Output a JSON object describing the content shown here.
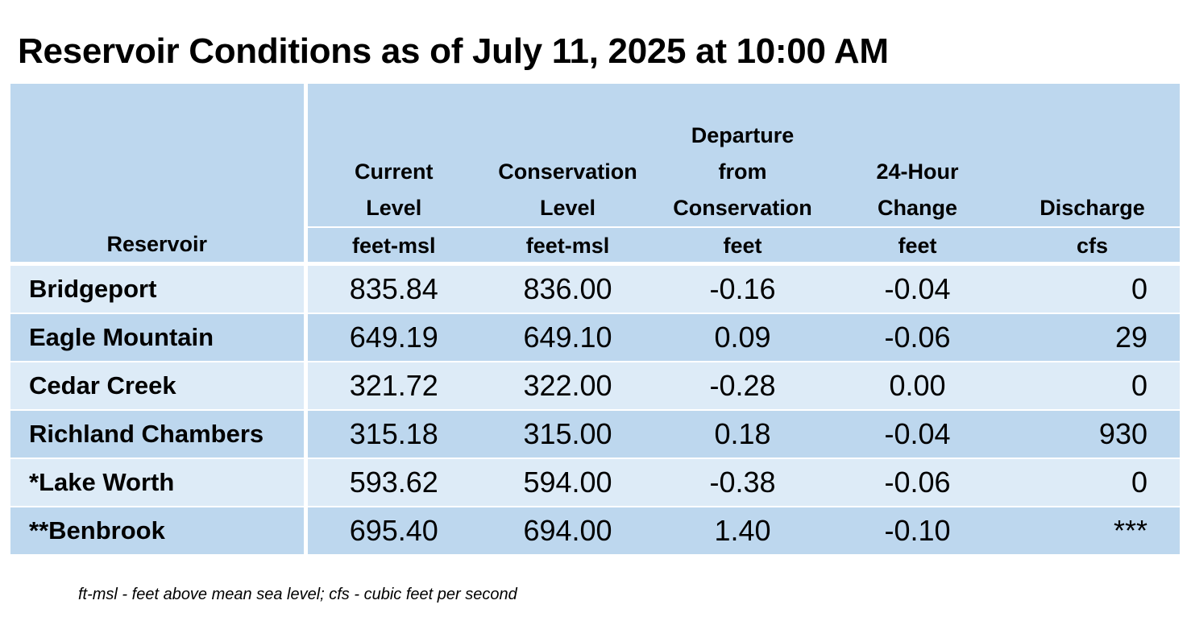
{
  "title": "Reservoir Conditions as of July 11, 2025 at 10:00 AM",
  "table": {
    "headers": {
      "reservoir": "Reservoir",
      "current_level": [
        "Current",
        "Level"
      ],
      "conservation_level": [
        "Conservation",
        "Level"
      ],
      "departure": [
        "Departure",
        "from",
        "Conservation"
      ],
      "change_24h": [
        "24-Hour",
        "Change"
      ],
      "discharge": [
        "Discharge"
      ]
    },
    "units": {
      "current_level": "feet-msl",
      "conservation_level": "feet-msl",
      "departure": "feet",
      "change_24h": "feet",
      "discharge": "cfs"
    },
    "rows": [
      {
        "name": "Bridgeport",
        "current": "835.84",
        "conservation": "836.00",
        "departure": "-0.16",
        "change": "-0.04",
        "discharge": "0"
      },
      {
        "name": "Eagle Mountain",
        "current": "649.19",
        "conservation": "649.10",
        "departure": "0.09",
        "change": "-0.06",
        "discharge": "29"
      },
      {
        "name": "Cedar Creek",
        "current": "321.72",
        "conservation": "322.00",
        "departure": "-0.28",
        "change": "0.00",
        "discharge": "0"
      },
      {
        "name": "Richland Chambers",
        "current": "315.18",
        "conservation": "315.00",
        "departure": "0.18",
        "change": "-0.04",
        "discharge": "930"
      },
      {
        "name": "*Lake Worth",
        "current": "593.62",
        "conservation": "594.00",
        "departure": "-0.38",
        "change": "-0.06",
        "discharge": "0"
      },
      {
        "name": "**Benbrook",
        "current": "695.40",
        "conservation": "694.00",
        "departure": "1.40",
        "change": "-0.10",
        "discharge": "***"
      }
    ]
  },
  "footnote": "ft-msl - feet above mean sea level; cfs - cubic feet per second",
  "colors": {
    "header_bg": "#bdd7ee",
    "row_light": "#ddebf7",
    "row_dark": "#bdd7ee"
  }
}
